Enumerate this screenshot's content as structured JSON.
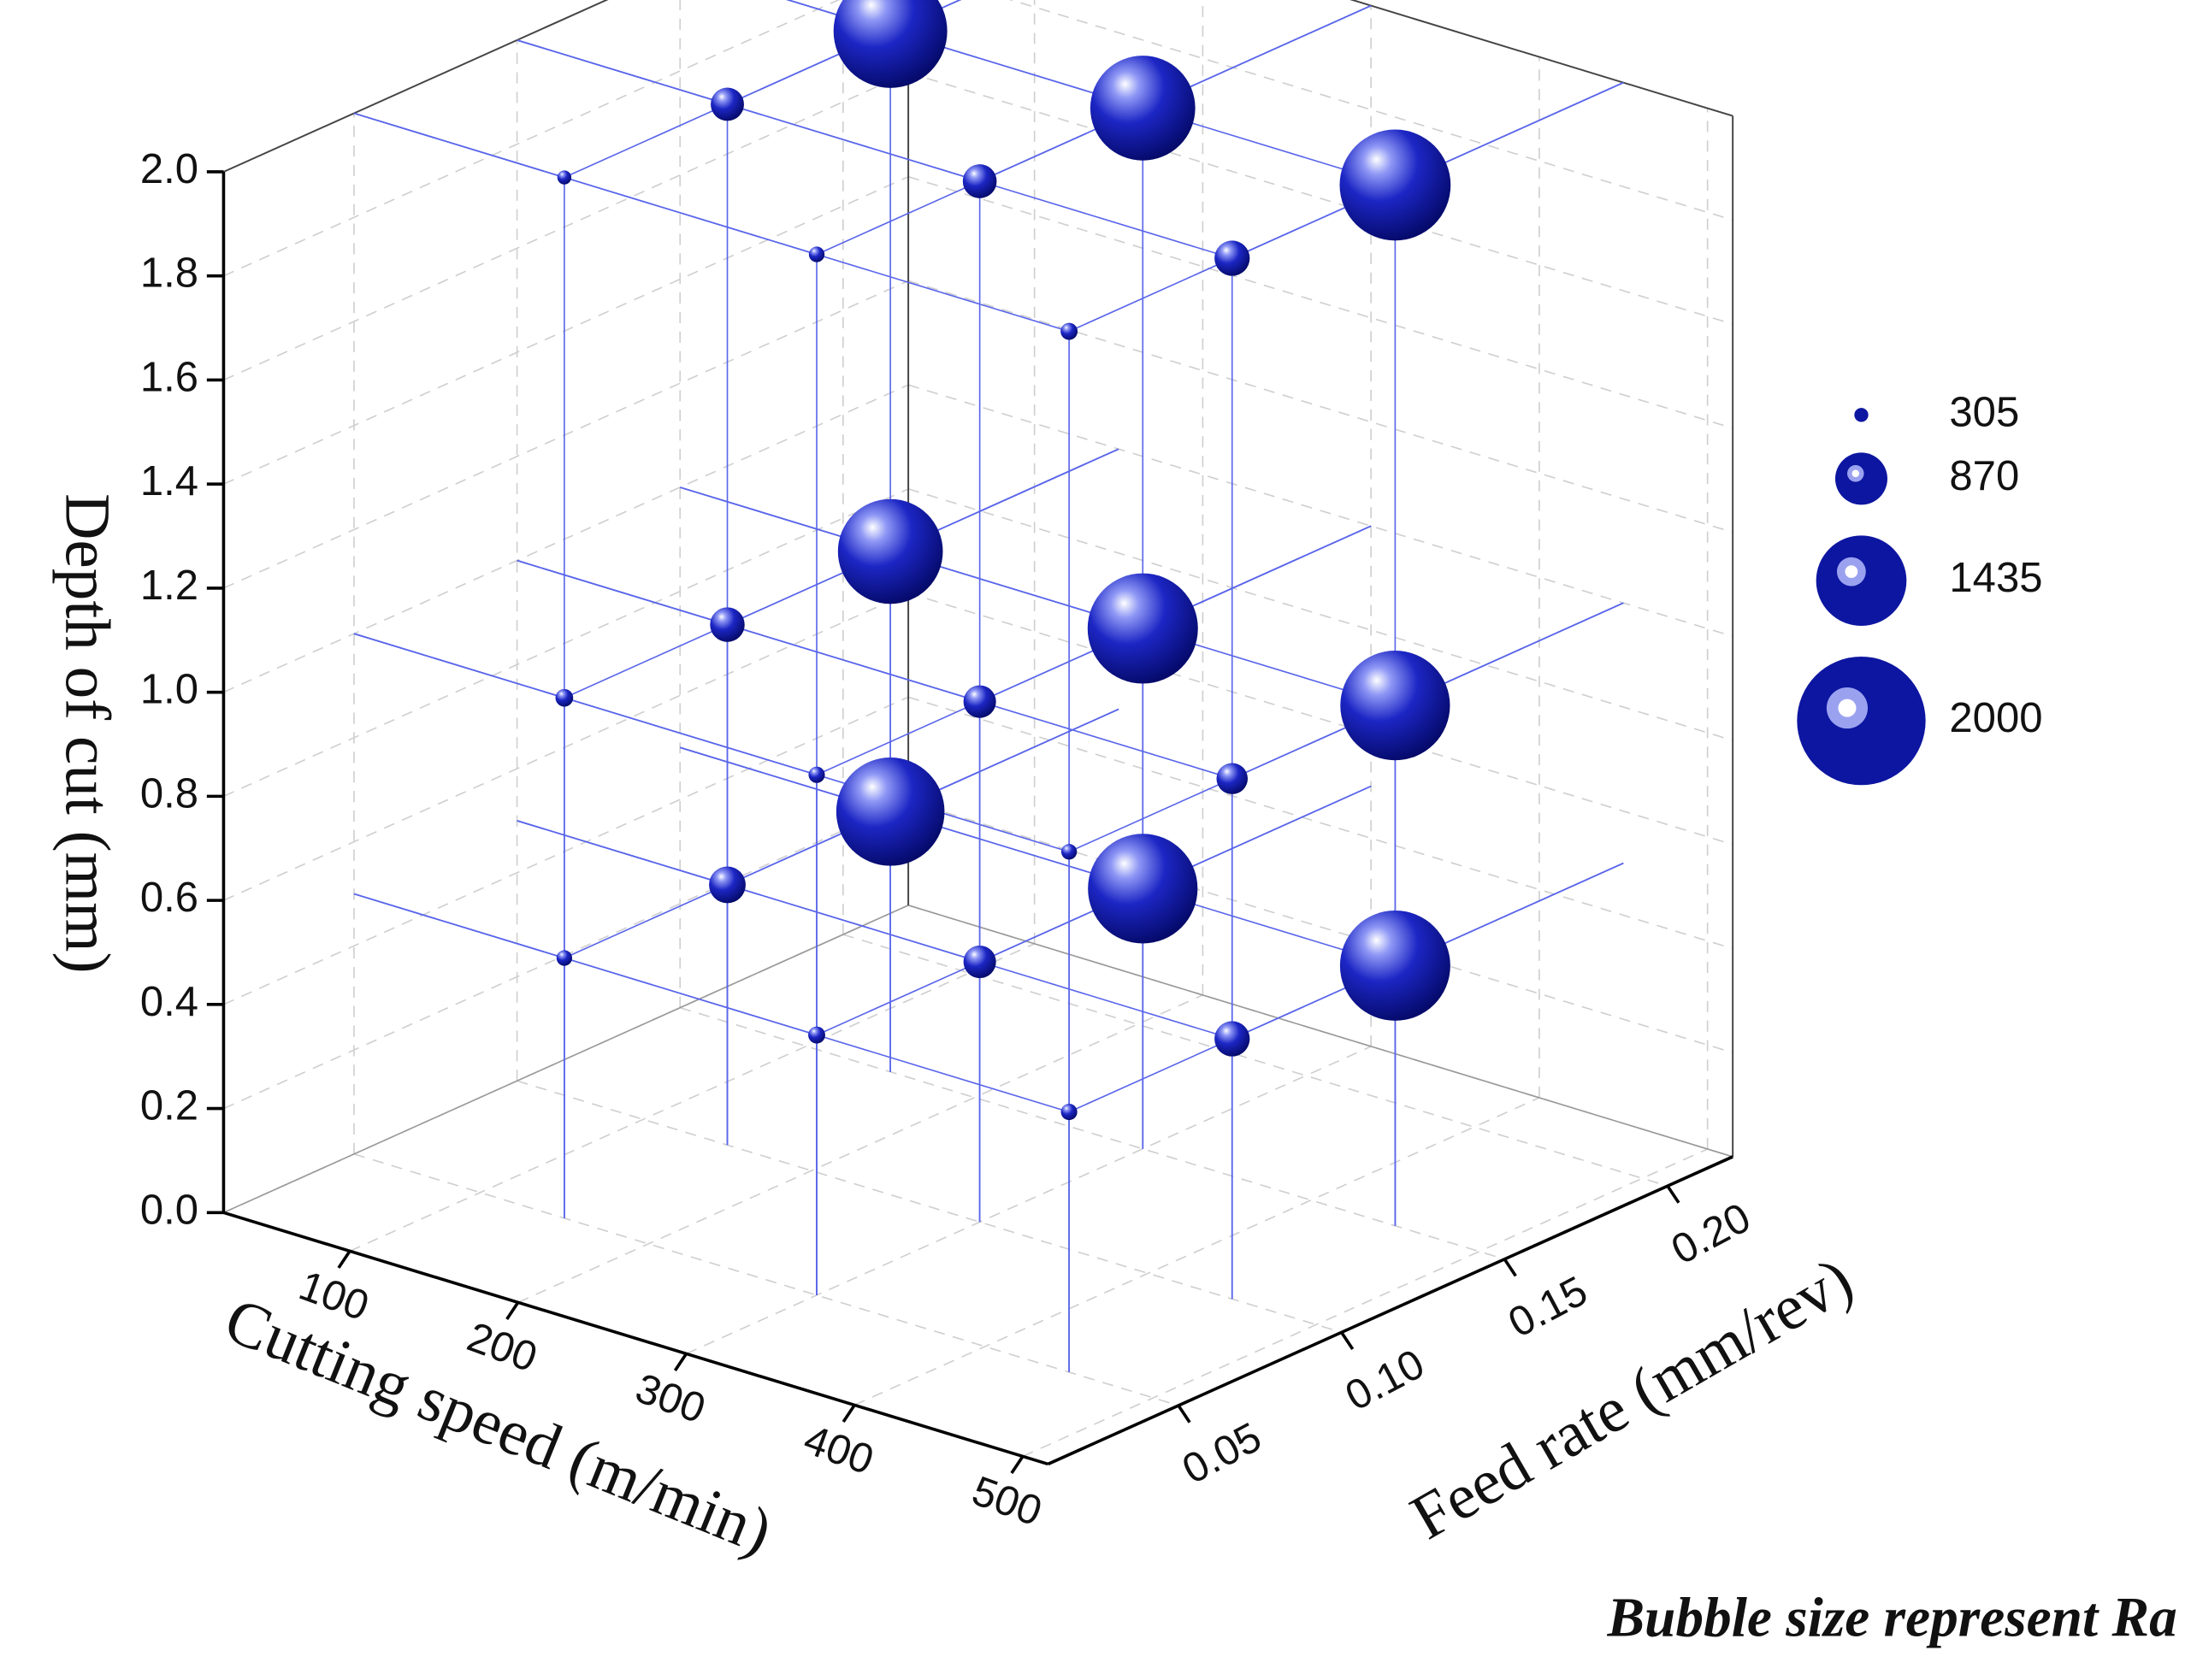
{
  "chart_data": {
    "type": "bubble3d",
    "x_label": "Cutting speed (m/min)",
    "y_label": "Feed rate (mm/rev)",
    "z_label": "Depth of cut (mm)",
    "annotation": "Bubble size represent Ra",
    "color": "#0d16a0",
    "xlim": [
      25,
      515
    ],
    "xticks": [
      100,
      200,
      300,
      400,
      500
    ],
    "ylim": [
      0.01,
      0.22
    ],
    "yticks": [
      0.05,
      {
        "value": 0.1,
        "label": "0.10"
      },
      0.15,
      {
        "value": 0.2,
        "label": "0.20"
      }
    ],
    "zlim": [
      0,
      2
    ],
    "zticks": [
      {
        "value": 0,
        "label": "0.0"
      },
      0.2,
      0.4,
      0.6,
      0.8,
      {
        "value": 1,
        "label": "1.0"
      },
      1.2,
      1.4,
      1.6,
      1.8,
      {
        "value": 2,
        "label": "2.0"
      }
    ],
    "x": [
      150,
      300,
      450,
      150,
      300,
      450,
      150,
      300,
      450,
      150,
      300,
      450,
      150,
      300,
      450,
      150,
      300,
      450,
      150,
      300,
      450,
      150,
      300,
      450,
      150,
      300,
      450
    ],
    "y": [
      0.15,
      0.15,
      0.15,
      0.1,
      0.1,
      0.1,
      0.05,
      0.05,
      0.05,
      0.15,
      0.15,
      0.15,
      0.1,
      0.1,
      0.1,
      0.05,
      0.05,
      0.05,
      0.15,
      0.15,
      0.15,
      0.1,
      0.1,
      0.1,
      0.05,
      0.05,
      0.05
    ],
    "z": [
      2,
      2,
      2,
      2,
      2,
      2,
      2,
      2,
      2,
      1,
      1,
      1,
      1,
      1,
      1,
      1,
      1,
      1,
      0.5,
      0.5,
      0.5,
      0.5,
      0.5,
      0.5,
      0.5,
      0.5,
      0.5
    ],
    "sizes": [
      1780,
      1650,
      1740,
      590,
      600,
      620,
      305,
      330,
      350,
      1650,
      1730,
      1720,
      610,
      580,
      560,
      360,
      340,
      330,
      1700,
      1720,
      1730,
      640,
      580,
      620,
      330,
      350,
      340
    ],
    "size_legend": [
      305,
      870,
      1435,
      2000
    ]
  }
}
